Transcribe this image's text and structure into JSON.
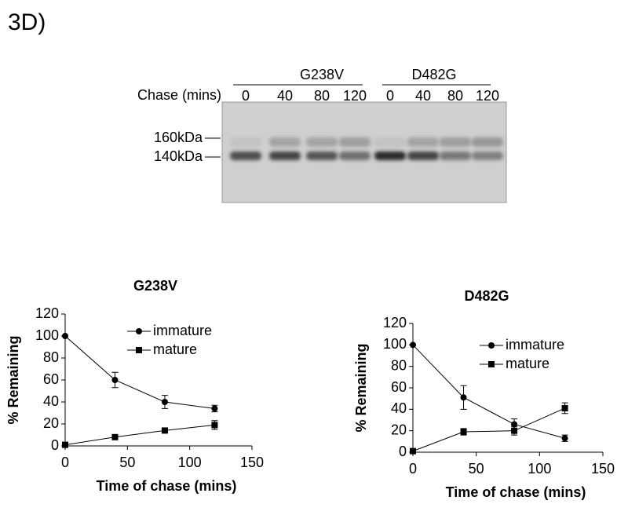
{
  "panel_label": "3D)",
  "gel": {
    "groups": [
      "G238V",
      "D482G"
    ],
    "row_label": "Chase (mins)",
    "lanes": [
      "0",
      "40",
      "80",
      "120",
      "0",
      "40",
      "80",
      "120"
    ],
    "markers": [
      "160kDa",
      "140kDa"
    ]
  },
  "chart_data": [
    {
      "type": "line",
      "title": "G238V",
      "xlabel": "Time of chase (mins)",
      "ylabel": "% Remaining",
      "x": [
        0,
        40,
        80,
        120
      ],
      "xlim": [
        0,
        150
      ],
      "xticks": [
        0,
        50,
        100,
        150
      ],
      "ylim": [
        0,
        120
      ],
      "yticks": [
        0,
        20,
        40,
        60,
        80,
        100,
        120
      ],
      "series": [
        {
          "name": "immature",
          "color": "#000000",
          "marker": "circle",
          "values": [
            100,
            60,
            40,
            34
          ],
          "errors": [
            0,
            7,
            6,
            3
          ]
        },
        {
          "name": "mature",
          "color": "#000000",
          "marker": "square",
          "values": [
            1,
            8,
            14,
            19
          ],
          "errors": [
            0,
            1,
            2,
            4
          ]
        }
      ]
    },
    {
      "type": "line",
      "title": "D482G",
      "xlabel": "Time of chase (mins)",
      "ylabel": "% Remaining",
      "x": [
        0,
        40,
        80,
        120
      ],
      "xlim": [
        0,
        150
      ],
      "xticks": [
        0,
        50,
        100,
        150
      ],
      "ylim": [
        0,
        120
      ],
      "yticks": [
        0,
        20,
        40,
        60,
        80,
        100,
        120
      ],
      "series": [
        {
          "name": "immature",
          "color": "#000000",
          "marker": "circle",
          "values": [
            100,
            51,
            26,
            13
          ],
          "errors": [
            0,
            11,
            5,
            3
          ]
        },
        {
          "name": "mature",
          "color": "#000000",
          "marker": "square",
          "values": [
            1,
            19,
            20,
            41
          ],
          "errors": [
            0,
            3,
            4,
            5
          ]
        }
      ]
    }
  ]
}
